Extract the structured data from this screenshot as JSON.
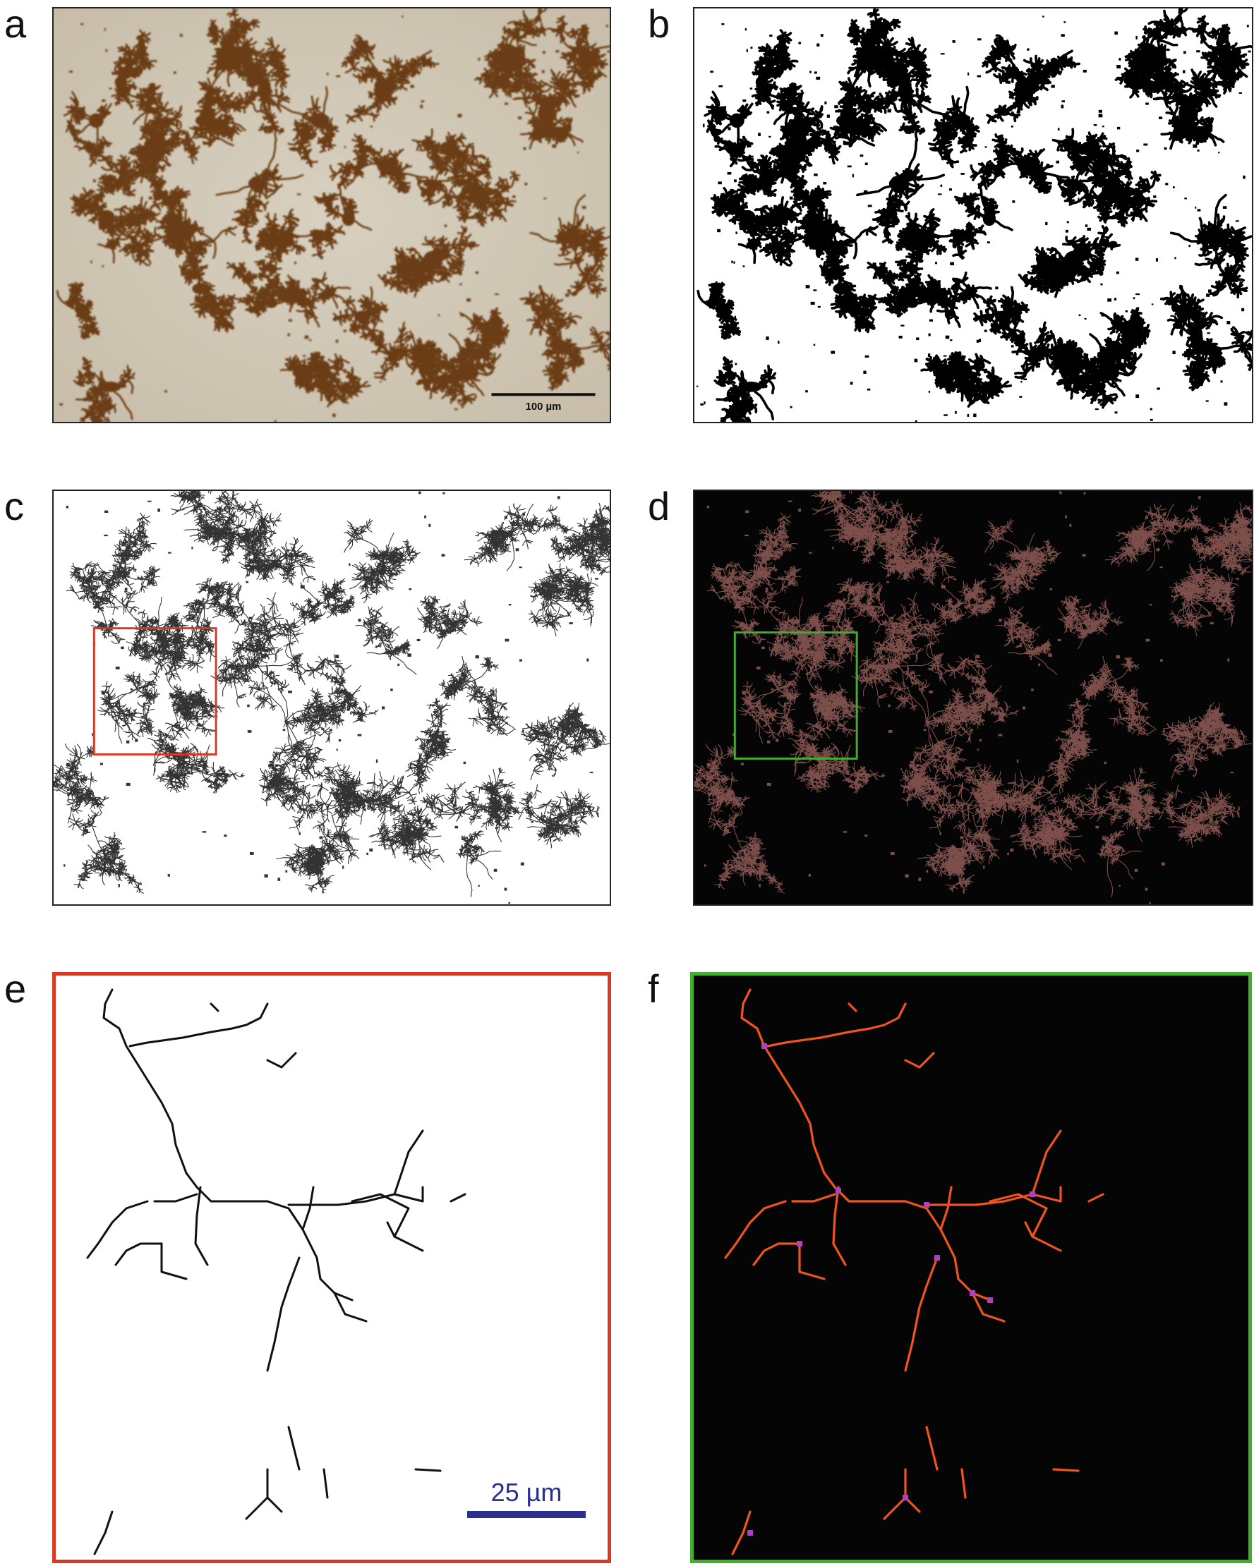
{
  "panels": {
    "a": {
      "label": "a",
      "scale_text": "100 µm"
    },
    "b": {
      "label": "b"
    },
    "c": {
      "label": "c"
    },
    "d": {
      "label": "d"
    },
    "e": {
      "label": "e",
      "scale_text": "25 µm"
    },
    "f": {
      "label": "f"
    }
  },
  "colors": {
    "stain_bg": "#cfc6b5",
    "stain_cells": "#6b3c12",
    "skeleton_dark": "#1a1a1a",
    "skeleton_overlay": "#8a5a55",
    "highlight_red": "#d83a25",
    "highlight_green": "#42ad2e",
    "branch_orange": "#f0541e",
    "junction_purple": "#b040c0",
    "scale_blue": "#2b2f8f"
  }
}
